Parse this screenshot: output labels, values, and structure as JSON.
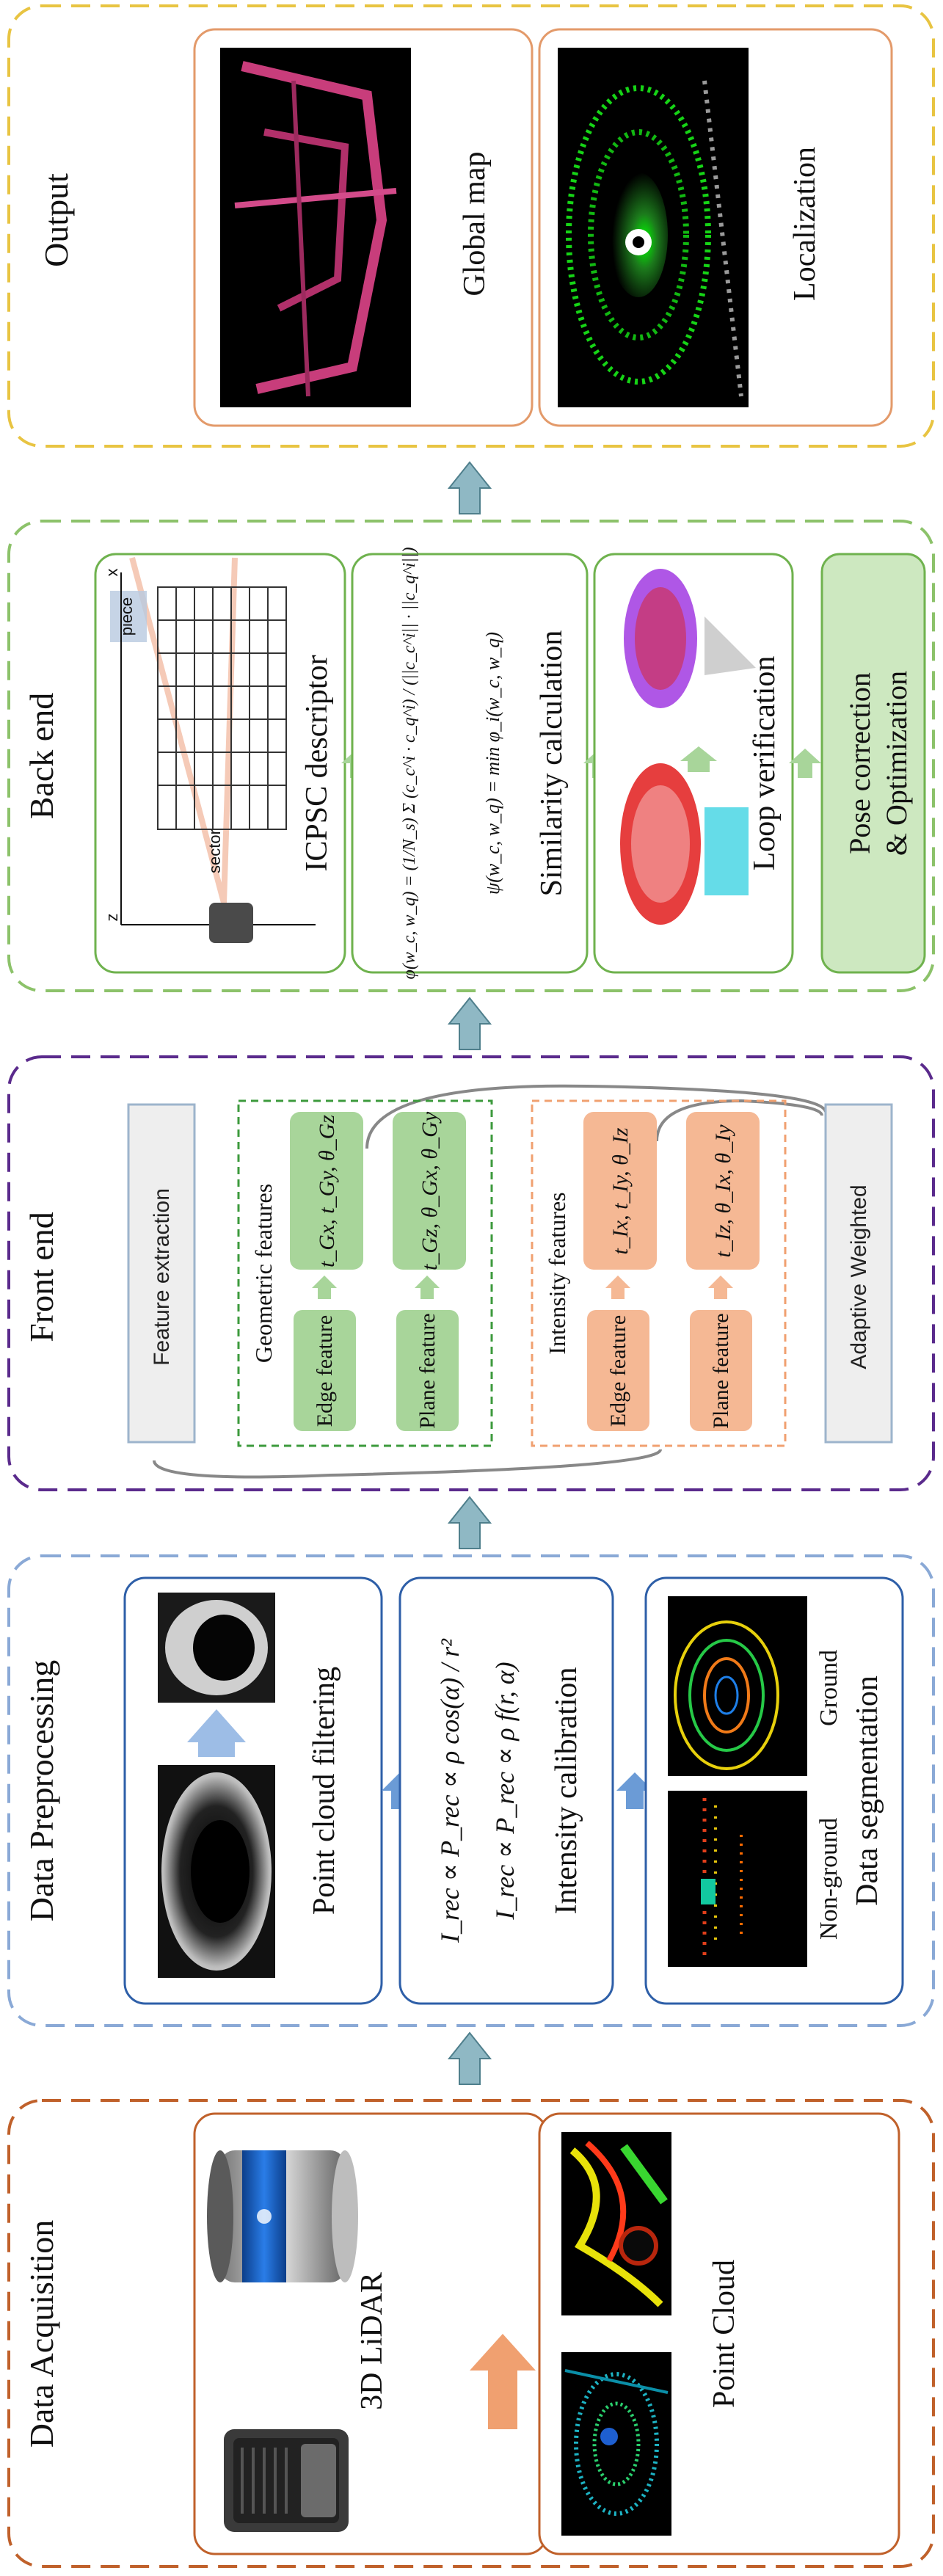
{
  "colors": {
    "acquisition": "#c0612b",
    "preprocessing": "#8aa9d6",
    "frontend": "#5a2a8c",
    "backend": "#8cc26a",
    "output": "#e8c442",
    "flow_arrow": "#8fb8c4",
    "geo_box": "#a8d59a",
    "int_box": "#f5b894",
    "pose_box": "#cde8c0"
  },
  "sections": {
    "acquisition": {
      "title": "Data Acquisition",
      "lidar_label": "3D LiDAR",
      "cloud_label": "Point Cloud"
    },
    "preprocessing": {
      "title": "Data Preprocessing",
      "filter_label": "Point cloud filtering",
      "intensity_label": "Intensity calibration",
      "eq1": "I_rec ∝ P_rec ∝ ρ cos(α) / r²",
      "eq2": "I_rec ∝ P_rec ∝ ρ f(r, α)",
      "seg_label": "Data segmentation",
      "nonground": "Non-ground",
      "ground": "Ground"
    },
    "frontend": {
      "title": "Front end",
      "feature_extraction": "Feature extraction",
      "geometric": "Geometric  features",
      "intensity": "Intensity features",
      "edge": "Edge feature",
      "plane": "Plane feature",
      "geo_edge_params": "t_Gx, t_Gy, θ_Gz",
      "geo_plane_params": "t_Gz, θ_Gx, θ_Gy",
      "int_edge_params": "t_Ix, t_Iy, θ_Iz",
      "int_plane_params": "t_Iz, θ_Ix, θ_Iy",
      "adaptive": "Adaptive Weighted"
    },
    "backend": {
      "title": "Back end",
      "descriptor": "ICPSC descriptor",
      "piece": "piece",
      "sector": "sector",
      "axis_x": "x",
      "axis_z": "z",
      "similarity": "Similarity calculation",
      "eq1": "φ(w_c, w_q) = (1/N_s) Σ (c_c^i · c_q^i) / (||c_c^i|| · ||c_q^i||)",
      "eq2": "ψ(w_c, w_q) = min φ_i(w_c, w_q)",
      "loop": "Loop verification",
      "pose_line1": "Pose correction",
      "pose_line2": "& Optimization"
    },
    "output": {
      "title": "Output",
      "global_map": "Global map",
      "localization": "Localization"
    }
  }
}
